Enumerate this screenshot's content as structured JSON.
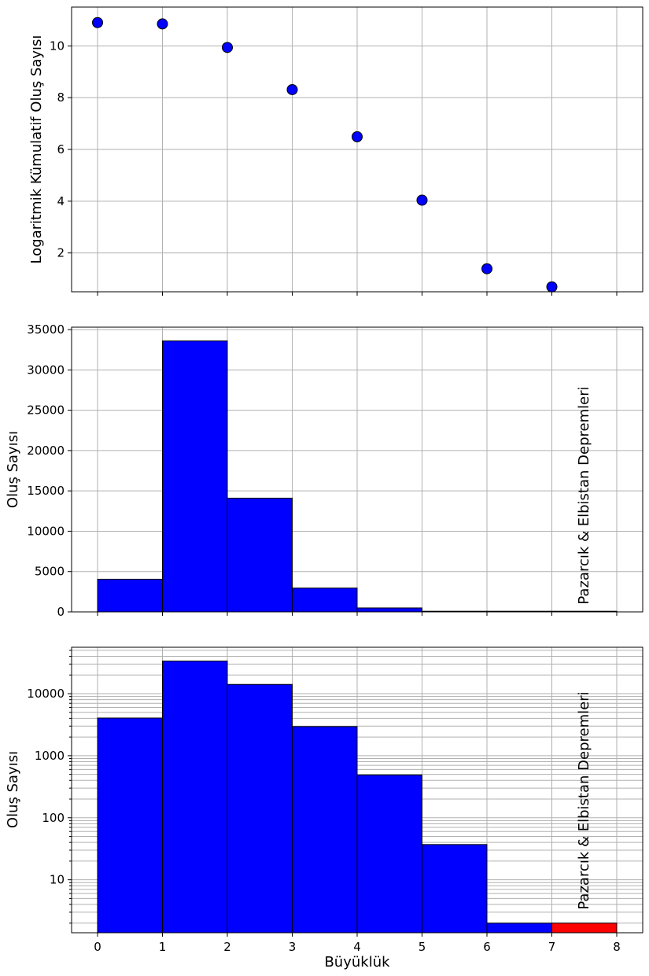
{
  "chart_data": [
    {
      "type": "scatter",
      "title": "",
      "xlabel": "",
      "ylabel": "Logaritmik Kümulatif Oluş Sayısı",
      "x": [
        0,
        1,
        2,
        3,
        4,
        5,
        6,
        7
      ],
      "y": [
        10.9,
        10.85,
        9.94,
        8.31,
        6.49,
        4.04,
        1.39,
        0.69
      ],
      "xlim": [
        -0.4,
        8.4
      ],
      "ylim": [
        0.5,
        11.5
      ],
      "yticks": [
        2,
        4,
        6,
        8,
        10
      ],
      "xticks": [
        0,
        1,
        2,
        3,
        4,
        5,
        6,
        7,
        8
      ],
      "marker_color": "#0000ff",
      "grid": true
    },
    {
      "type": "bar",
      "title": "",
      "xlabel": "",
      "ylabel": "Oluş Sayısı",
      "bin_edges": [
        0,
        1,
        2,
        3,
        4,
        5,
        6,
        7,
        8
      ],
      "values": [
        4050,
        33600,
        14100,
        2950,
        490,
        37,
        2,
        2
      ],
      "colors": [
        "#0000ff",
        "#0000ff",
        "#0000ff",
        "#0000ff",
        "#0000ff",
        "#0000ff",
        "#0000ff",
        "#ff0000"
      ],
      "xlim": [
        -0.4,
        8.4
      ],
      "ylim": [
        0,
        35300
      ],
      "yticks": [
        0,
        5000,
        10000,
        15000,
        20000,
        25000,
        30000,
        35000
      ],
      "yticklabels": [
        "0",
        "5000",
        "10000",
        "15000",
        "20000",
        "25000",
        "30000",
        "35000"
      ],
      "annotation": "Pazarcık & Elbistan Depremleri",
      "grid": true
    },
    {
      "type": "bar",
      "title": "",
      "xlabel": "Büyüklük",
      "ylabel": "Oluş Sayısı",
      "yscale": "log",
      "bin_edges": [
        0,
        1,
        2,
        3,
        4,
        5,
        6,
        7,
        8
      ],
      "values": [
        4050,
        33600,
        14100,
        2950,
        490,
        37,
        2,
        2
      ],
      "colors": [
        "#0000ff",
        "#0000ff",
        "#0000ff",
        "#0000ff",
        "#0000ff",
        "#0000ff",
        "#0000ff",
        "#ff0000"
      ],
      "xlim": [
        -0.4,
        8.4
      ],
      "ylim": [
        1.4,
        56000
      ],
      "yticks": [
        10,
        100,
        1000,
        10000
      ],
      "yticklabels": [
        "10",
        "100",
        "1000",
        "10000"
      ],
      "xticks": [
        0,
        1,
        2,
        3,
        4,
        5,
        6,
        7,
        8
      ],
      "xticklabels": [
        "0",
        "1",
        "2",
        "3",
        "4",
        "5",
        "6",
        "7",
        "8"
      ],
      "annotation": "Pazarcık & Elbistan Depremleri",
      "grid": true
    }
  ]
}
